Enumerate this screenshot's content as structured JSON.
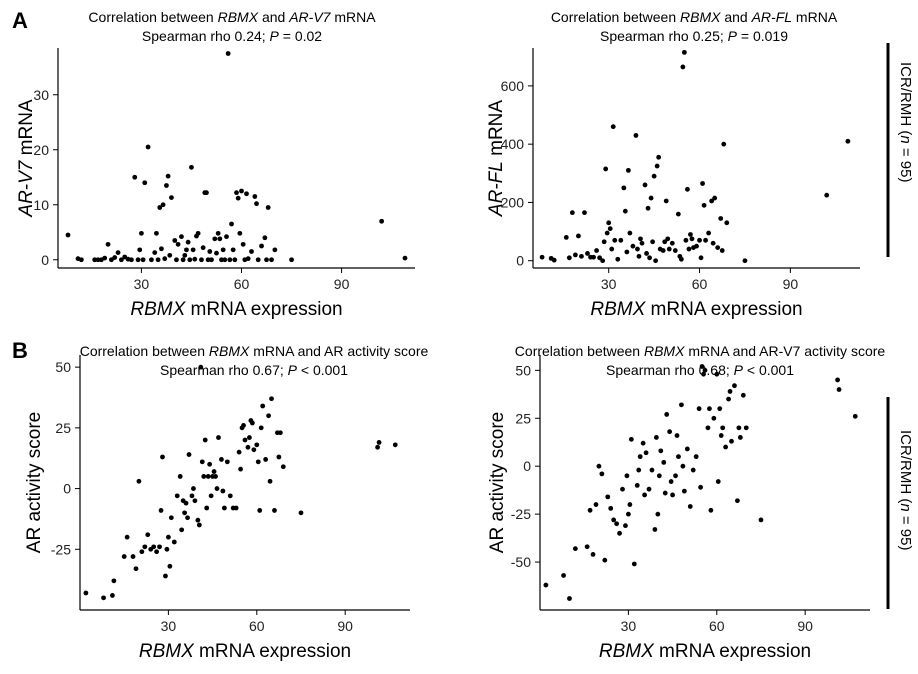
{
  "panels": {
    "A": "A",
    "B": "B"
  },
  "cohort_label": {
    "prefix": "ICR/RMH (",
    "italic": "n",
    "suffix": " = 95)"
  },
  "chart_data": [
    {
      "id": "A-left",
      "type": "scatter",
      "title": [
        "Correlation between ",
        {
          "i": "RBMX"
        },
        " and ",
        {
          "i": "AR-V7"
        },
        " mRNA"
      ],
      "subtitle": [
        "Spearman rho 0.24; ",
        {
          "i": "P"
        },
        " = 0.02"
      ],
      "xlabel": [
        {
          "i": "RBMX"
        },
        " mRNA expression"
      ],
      "ylabel": [
        {
          "i": "AR-V7"
        },
        " mRNA"
      ],
      "xticks": [
        30,
        60,
        90
      ],
      "yticks": [
        0,
        10,
        20,
        30
      ],
      "xlim": [
        5,
        112
      ],
      "ylim": [
        -1.5,
        38.5
      ],
      "points": [
        [
          8,
          4.5
        ],
        [
          11,
          0.2
        ],
        [
          12,
          0
        ],
        [
          16,
          0
        ],
        [
          17,
          0
        ],
        [
          18,
          0
        ],
        [
          19,
          0.3
        ],
        [
          20,
          2.8
        ],
        [
          21,
          0
        ],
        [
          22,
          0.4
        ],
        [
          23,
          1.3
        ],
        [
          24,
          0
        ],
        [
          25,
          0.5
        ],
        [
          26,
          0.1
        ],
        [
          27,
          0
        ],
        [
          28,
          15
        ],
        [
          29,
          0
        ],
        [
          29.5,
          1.8
        ],
        [
          30,
          4.8
        ],
        [
          30.5,
          0
        ],
        [
          31,
          14
        ],
        [
          32,
          20.5
        ],
        [
          33,
          0
        ],
        [
          34,
          1.3
        ],
        [
          34.5,
          4.8
        ],
        [
          35,
          0
        ],
        [
          35.5,
          9.5
        ],
        [
          36,
          2
        ],
        [
          36.5,
          10
        ],
        [
          37,
          0.2
        ],
        [
          37.5,
          13.5
        ],
        [
          38,
          15.2
        ],
        [
          38.5,
          0.8
        ],
        [
          39,
          11.3
        ],
        [
          40,
          3.5
        ],
        [
          40.5,
          0
        ],
        [
          41,
          2.8
        ],
        [
          42,
          4.2
        ],
        [
          42.5,
          0
        ],
        [
          43,
          0.8
        ],
        [
          43.5,
          1.8
        ],
        [
          44,
          3.2
        ],
        [
          44.5,
          0
        ],
        [
          45,
          16.8
        ],
        [
          45.5,
          1.8
        ],
        [
          46,
          0.1
        ],
        [
          46.5,
          4.3
        ],
        [
          47,
          4.8
        ],
        [
          48,
          0
        ],
        [
          48.5,
          2.2
        ],
        [
          49,
          12.2
        ],
        [
          49.5,
          12.2
        ],
        [
          50,
          0
        ],
        [
          50.5,
          1.5
        ],
        [
          51,
          0
        ],
        [
          52,
          3.8
        ],
        [
          52.5,
          1.2
        ],
        [
          53,
          4.8
        ],
        [
          53.5,
          3.8
        ],
        [
          54,
          0
        ],
        [
          54.5,
          1.8
        ],
        [
          55,
          0
        ],
        [
          55.5,
          4.2
        ],
        [
          56,
          37.5
        ],
        [
          56.5,
          0
        ],
        [
          57,
          6.5
        ],
        [
          57.5,
          1.8
        ],
        [
          58,
          0
        ],
        [
          58.5,
          12.2
        ],
        [
          59,
          11.2
        ],
        [
          59.5,
          4.8
        ],
        [
          60,
          12.5
        ],
        [
          60.5,
          2.8
        ],
        [
          61,
          0
        ],
        [
          61.5,
          12
        ],
        [
          62,
          0.2
        ],
        [
          63,
          1.5
        ],
        [
          64,
          11.5
        ],
        [
          64.5,
          10.2
        ],
        [
          65,
          0
        ],
        [
          66,
          2.5
        ],
        [
          67,
          4
        ],
        [
          67.5,
          0
        ],
        [
          68,
          9.5
        ],
        [
          69,
          0
        ],
        [
          70,
          1.8
        ],
        [
          75,
          0
        ],
        [
          102,
          7
        ],
        [
          109,
          0.3
        ]
      ]
    },
    {
      "id": "A-right",
      "type": "scatter",
      "title": [
        "Correlation between ",
        {
          "i": "RBMX"
        },
        " and ",
        {
          "i": "AR-FL"
        },
        " mRNA"
      ],
      "subtitle": [
        "Spearman rho 0.25; ",
        {
          "i": "P"
        },
        " = 0.019"
      ],
      "xlabel": [
        {
          "i": "RBMX"
        },
        " mRNA expression"
      ],
      "ylabel": [
        {
          "i": "AR-FL"
        },
        " mRNA"
      ],
      "xticks": [
        30,
        60,
        90
      ],
      "yticks": [
        0,
        200,
        400,
        600
      ],
      "xlim": [
        5,
        113
      ],
      "ylim": [
        -25,
        730
      ],
      "points": [
        [
          8,
          12
        ],
        [
          11,
          8
        ],
        [
          12,
          2
        ],
        [
          16,
          80
        ],
        [
          17,
          10
        ],
        [
          18,
          165
        ],
        [
          19,
          20
        ],
        [
          20,
          85
        ],
        [
          21,
          15
        ],
        [
          22,
          165
        ],
        [
          23,
          25
        ],
        [
          24,
          12
        ],
        [
          25,
          12
        ],
        [
          26,
          35
        ],
        [
          27,
          10
        ],
        [
          28,
          0
        ],
        [
          28.5,
          65
        ],
        [
          29,
          315
        ],
        [
          29.5,
          95
        ],
        [
          30,
          130
        ],
        [
          30.5,
          110
        ],
        [
          31,
          40
        ],
        [
          31.5,
          460
        ],
        [
          32,
          70
        ],
        [
          33,
          5
        ],
        [
          34,
          70
        ],
        [
          35,
          250
        ],
        [
          35.5,
          170
        ],
        [
          36,
          30
        ],
        [
          36.5,
          310
        ],
        [
          37,
          95
        ],
        [
          38,
          50
        ],
        [
          39,
          430
        ],
        [
          39.5,
          40
        ],
        [
          40,
          15
        ],
        [
          40.5,
          75
        ],
        [
          41,
          60
        ],
        [
          42,
          260
        ],
        [
          42.5,
          25
        ],
        [
          43,
          180
        ],
        [
          43.5,
          10
        ],
        [
          44,
          215
        ],
        [
          44.5,
          65
        ],
        [
          45,
          290
        ],
        [
          45.5,
          0
        ],
        [
          46,
          325
        ],
        [
          46.5,
          355
        ],
        [
          47,
          40
        ],
        [
          48,
          35
        ],
        [
          48.5,
          65
        ],
        [
          49,
          205
        ],
        [
          49.5,
          75
        ],
        [
          50,
          40
        ],
        [
          51,
          60
        ],
        [
          52,
          35
        ],
        [
          53,
          160
        ],
        [
          53.5,
          15
        ],
        [
          54,
          5
        ],
        [
          54.5,
          665
        ],
        [
          55,
          715
        ],
        [
          55.5,
          70
        ],
        [
          56,
          245
        ],
        [
          56.5,
          40
        ],
        [
          57,
          90
        ],
        [
          57.5,
          75
        ],
        [
          58,
          45
        ],
        [
          59,
          50
        ],
        [
          60,
          70
        ],
        [
          60.5,
          10
        ],
        [
          61,
          265
        ],
        [
          61.5,
          190
        ],
        [
          62,
          70
        ],
        [
          63,
          95
        ],
        [
          64,
          205
        ],
        [
          64.5,
          60
        ],
        [
          65,
          215
        ],
        [
          66,
          45
        ],
        [
          67,
          145
        ],
        [
          67.5,
          35
        ],
        [
          68,
          400
        ],
        [
          69,
          130
        ],
        [
          75,
          0
        ],
        [
          102,
          225
        ],
        [
          109,
          410
        ]
      ]
    },
    {
      "id": "B-left",
      "type": "scatter",
      "title": [
        "Correlation between ",
        {
          "i": "RBMX"
        },
        " mRNA and AR activity score"
      ],
      "subtitle": [
        "Spearman rho 0.67; ",
        {
          "i": "P"
        },
        " < 0.001"
      ],
      "xlabel": [
        {
          "i": "RBMX"
        },
        " mRNA expression"
      ],
      "ylabel": [
        "AR activity score"
      ],
      "xticks": [
        30,
        60,
        90
      ],
      "yticks": [
        -25,
        0,
        25,
        50
      ],
      "xlim": [
        0,
        112
      ],
      "ylim": [
        -50,
        55
      ],
      "points": [
        [
          2,
          -43
        ],
        [
          8,
          -45
        ],
        [
          11,
          -44
        ],
        [
          11.5,
          -38
        ],
        [
          15,
          -28
        ],
        [
          16,
          -20
        ],
        [
          18,
          -28
        ],
        [
          19,
          -33
        ],
        [
          20,
          3
        ],
        [
          21,
          -26
        ],
        [
          22,
          -24
        ],
        [
          23,
          -19
        ],
        [
          24,
          -25
        ],
        [
          25,
          -24
        ],
        [
          26,
          -26
        ],
        [
          27,
          -24
        ],
        [
          27.5,
          -9
        ],
        [
          28,
          13
        ],
        [
          29,
          -36
        ],
        [
          29.5,
          -25
        ],
        [
          30,
          -20
        ],
        [
          30.5,
          -32
        ],
        [
          31,
          -12
        ],
        [
          32,
          -22
        ],
        [
          33,
          -3
        ],
        [
          34,
          5
        ],
        [
          34.5,
          -17
        ],
        [
          35,
          -5
        ],
        [
          35.5,
          -10
        ],
        [
          36,
          -6
        ],
        [
          36.5,
          -12
        ],
        [
          37,
          14
        ],
        [
          38,
          -3
        ],
        [
          38.5,
          0
        ],
        [
          39,
          -5
        ],
        [
          40,
          -13
        ],
        [
          40.5,
          -15
        ],
        [
          41,
          50
        ],
        [
          41.5,
          11
        ],
        [
          42,
          5
        ],
        [
          42.5,
          20
        ],
        [
          43,
          -8
        ],
        [
          43.5,
          5
        ],
        [
          44,
          10
        ],
        [
          44.5,
          -3
        ],
        [
          45,
          5
        ],
        [
          45.5,
          7
        ],
        [
          46,
          5
        ],
        [
          46.5,
          0
        ],
        [
          47,
          21
        ],
        [
          48,
          12
        ],
        [
          48.5,
          -1
        ],
        [
          49,
          -8
        ],
        [
          50,
          11
        ],
        [
          51,
          -3
        ],
        [
          52,
          -8
        ],
        [
          53,
          -8
        ],
        [
          54,
          15
        ],
        [
          54.5,
          8
        ],
        [
          55,
          25
        ],
        [
          55.5,
          26
        ],
        [
          56,
          20
        ],
        [
          57,
          17
        ],
        [
          57.5,
          21
        ],
        [
          58,
          28
        ],
        [
          58.5,
          27
        ],
        [
          59,
          16
        ],
        [
          60,
          18
        ],
        [
          60.5,
          11
        ],
        [
          61,
          -9
        ],
        [
          61.5,
          25
        ],
        [
          62,
          34
        ],
        [
          63,
          12
        ],
        [
          64,
          30
        ],
        [
          64.5,
          3
        ],
        [
          65,
          37
        ],
        [
          66,
          -9
        ],
        [
          67,
          23
        ],
        [
          67.5,
          13
        ],
        [
          68,
          23
        ],
        [
          69,
          9
        ],
        [
          75,
          -10
        ],
        [
          101,
          17
        ],
        [
          101.5,
          19
        ],
        [
          107,
          18
        ]
      ]
    },
    {
      "id": "B-right",
      "type": "scatter",
      "title": [
        "Correlation between ",
        {
          "i": "RBMX"
        },
        " mRNA and AR-V7 activity score"
      ],
      "subtitle": [
        "Spearman rho 0.68; ",
        {
          "i": "P"
        },
        " < 0.001"
      ],
      "xlabel": [
        {
          "i": "RBMX"
        },
        " mRNA expression"
      ],
      "ylabel": [
        "AR activity score"
      ],
      "xticks": [
        30,
        60,
        90
      ],
      "yticks": [
        -50,
        -25,
        0,
        25,
        50
      ],
      "xlim": [
        0,
        112
      ],
      "ylim": [
        -75,
        58
      ],
      "points": [
        [
          2,
          -62
        ],
        [
          8,
          -57
        ],
        [
          10,
          -69
        ],
        [
          12,
          -43
        ],
        [
          16,
          -42
        ],
        [
          17,
          -23
        ],
        [
          18,
          -46
        ],
        [
          19,
          -20
        ],
        [
          20,
          0
        ],
        [
          21,
          -4
        ],
        [
          22,
          -49
        ],
        [
          23,
          -16
        ],
        [
          24,
          -22
        ],
        [
          25,
          -28
        ],
        [
          26,
          -30
        ],
        [
          27,
          -35
        ],
        [
          28,
          -12
        ],
        [
          29,
          -31
        ],
        [
          29.5,
          -5
        ],
        [
          30,
          -25
        ],
        [
          30.5,
          -20
        ],
        [
          31,
          14
        ],
        [
          32,
          -51
        ],
        [
          33,
          -10
        ],
        [
          33.5,
          -2
        ],
        [
          34,
          5
        ],
        [
          35,
          12
        ],
        [
          35.5,
          -15
        ],
        [
          36,
          7
        ],
        [
          37,
          -12
        ],
        [
          38,
          -2
        ],
        [
          39,
          -33
        ],
        [
          39.5,
          15
        ],
        [
          40,
          -25
        ],
        [
          40.5,
          -5
        ],
        [
          41,
          8
        ],
        [
          42,
          2
        ],
        [
          42.5,
          -14
        ],
        [
          43,
          27
        ],
        [
          44,
          18
        ],
        [
          44.5,
          -8
        ],
        [
          45,
          -15
        ],
        [
          46,
          -5
        ],
        [
          46.5,
          16
        ],
        [
          47,
          5
        ],
        [
          48,
          32
        ],
        [
          48.5,
          0
        ],
        [
          49,
          -13
        ],
        [
          50,
          9
        ],
        [
          51,
          -21
        ],
        [
          52,
          -2
        ],
        [
          53,
          5
        ],
        [
          54,
          30
        ],
        [
          54.5,
          -11
        ],
        [
          55,
          52
        ],
        [
          55.5,
          48
        ],
        [
          56,
          50
        ],
        [
          57,
          20
        ],
        [
          57.5,
          30
        ],
        [
          58,
          -23
        ],
        [
          59,
          25
        ],
        [
          60,
          48
        ],
        [
          60.5,
          -8
        ],
        [
          61,
          30
        ],
        [
          61.5,
          16
        ],
        [
          62,
          20
        ],
        [
          63,
          10
        ],
        [
          64,
          35
        ],
        [
          64.5,
          39
        ],
        [
          65,
          13
        ],
        [
          66,
          42
        ],
        [
          67,
          -18
        ],
        [
          67.5,
          20
        ],
        [
          68,
          15
        ],
        [
          69,
          37
        ],
        [
          70,
          20
        ],
        [
          75,
          -28
        ],
        [
          101,
          45
        ],
        [
          101.5,
          40
        ],
        [
          107,
          26
        ]
      ]
    }
  ]
}
